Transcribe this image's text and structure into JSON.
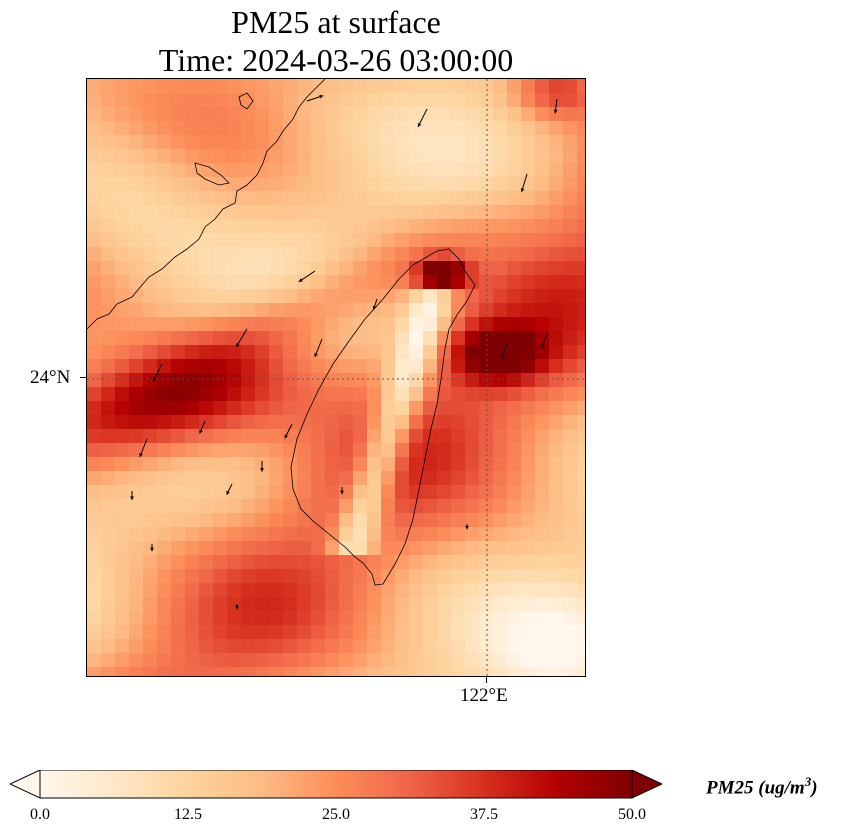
{
  "title": {
    "line1": "PM25 at surface",
    "line2": "Time: 2024-03-26 03:00:00"
  },
  "axes": {
    "lat_tick": "24°N",
    "lon_tick": "122°E"
  },
  "colorbar": {
    "label_main": "PM25 (ug/m",
    "label_sup": "3",
    "label_end": ")",
    "ticks": [
      "0.0",
      "12.5",
      "25.0",
      "37.5",
      "50.0"
    ],
    "vmin": 0,
    "vmax": 50,
    "colormap": "OrRd",
    "extend": "both"
  },
  "colors": {
    "cmap_stops": [
      "#fff7ec",
      "#fee8c8",
      "#fdd49e",
      "#fdbb84",
      "#fc8d59",
      "#ef6548",
      "#d7301f",
      "#b30000",
      "#7f0000"
    ]
  }
}
